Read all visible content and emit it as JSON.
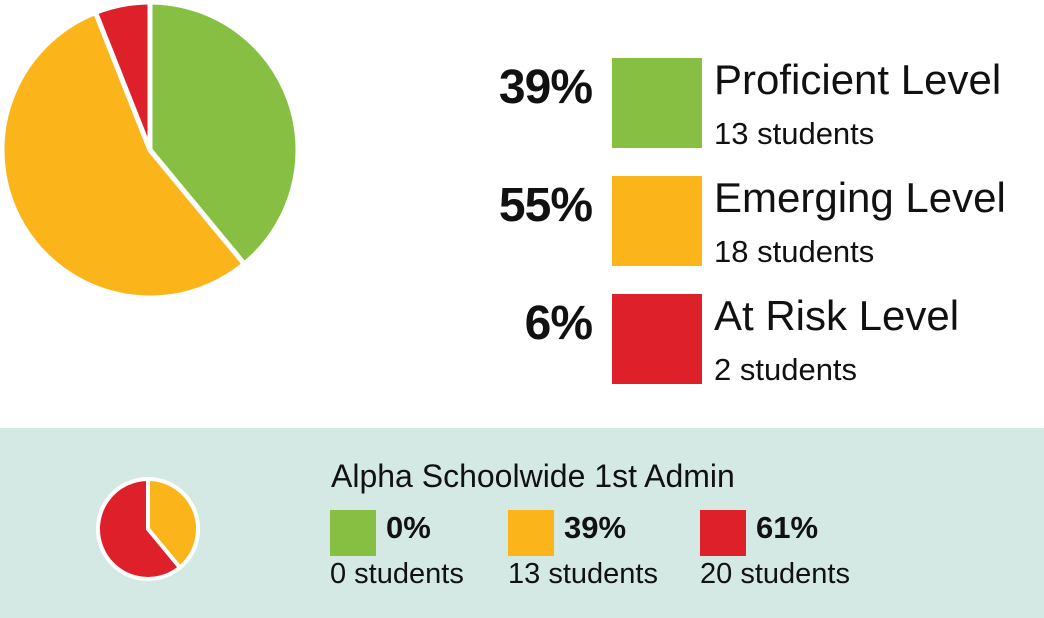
{
  "chart_data": [
    {
      "type": "pie",
      "slices": [
        {
          "label": "Proficient Level",
          "value": 39,
          "color": "#86bf41"
        },
        {
          "label": "Emerging Level",
          "value": 55,
          "color": "#fbb51b"
        },
        {
          "label": "At Risk Level",
          "value": 6,
          "color": "#dd2029"
        }
      ]
    },
    {
      "type": "pie",
      "title": "Alpha Schoolwide 1st Admin",
      "slices": [
        {
          "label": "",
          "value": 0,
          "color": "#86bf41"
        },
        {
          "label": "",
          "value": 39,
          "color": "#fbb51b"
        },
        {
          "label": "",
          "value": 61,
          "color": "#dd2029"
        }
      ]
    }
  ],
  "legend": [
    {
      "percent": "39%",
      "name": "Proficient Level",
      "count": "13 students",
      "color": "#86bf41"
    },
    {
      "percent": "55%",
      "name": "Emerging Level",
      "count": "18 students",
      "color": "#fbb51b"
    },
    {
      "percent": "6%",
      "name": "At Risk Level",
      "count": "2 students",
      "color": "#dd2029"
    }
  ],
  "admin": {
    "title": "Alpha Schoolwide 1st Admin",
    "items": [
      {
        "percent": "0%",
        "count": "0 students",
        "color": "#86bf41"
      },
      {
        "percent": "39%",
        "count": "13 students",
        "color": "#fbb51b"
      },
      {
        "percent": "61%",
        "count": "20 students",
        "color": "#dd2029"
      }
    ]
  },
  "colors": {
    "panel_background": "#d5e9e4"
  }
}
